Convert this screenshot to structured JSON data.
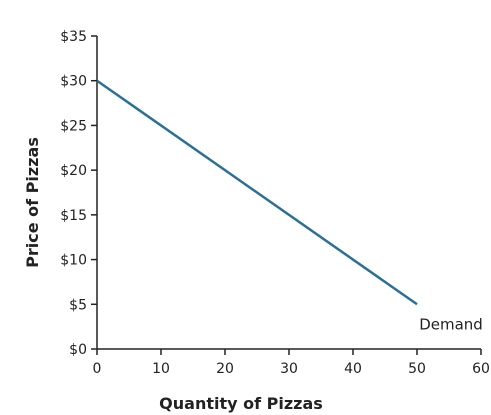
{
  "chart_data": {
    "type": "line",
    "title": "",
    "xlabel": "Quantity of Pizzas",
    "ylabel": "Price of Pizzas",
    "xlim": [
      0,
      60
    ],
    "ylim": [
      0,
      35
    ],
    "x_ticks": [
      0,
      10,
      20,
      30,
      40,
      50,
      60
    ],
    "x_tick_labels": [
      "0",
      "10",
      "20",
      "30",
      "40",
      "50",
      "60"
    ],
    "y_ticks": [
      0,
      5,
      10,
      15,
      20,
      25,
      30,
      35
    ],
    "y_tick_labels": [
      "$0",
      "$5",
      "$10",
      "$15",
      "$20",
      "$25",
      "$30",
      "$35"
    ],
    "grid": false,
    "legend": "none",
    "series": [
      {
        "name": "Demand",
        "color": "#2a6f97",
        "points": [
          {
            "x": 0,
            "y": 30
          },
          {
            "x": 50,
            "y": 5
          }
        ]
      }
    ]
  }
}
